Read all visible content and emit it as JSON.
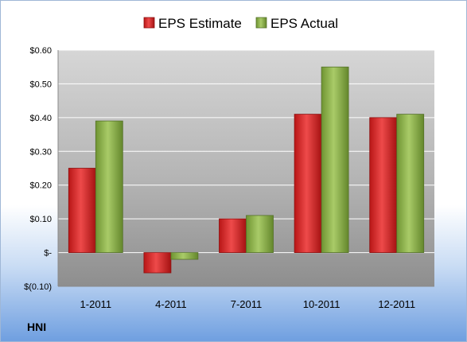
{
  "chart_data": {
    "type": "bar",
    "categories": [
      "1-2011",
      "4-2011",
      "7-2011",
      "10-2011",
      "12-2011"
    ],
    "series": [
      {
        "name": "EPS Estimate",
        "color": "#d42a2a",
        "values": [
          0.25,
          -0.06,
          0.1,
          0.41,
          0.4
        ]
      },
      {
        "name": "EPS Actual",
        "color": "#8bb04a",
        "values": [
          0.39,
          -0.02,
          0.11,
          0.55,
          0.41
        ]
      }
    ],
    "ylim": [
      -0.1,
      0.6
    ],
    "yticks": [
      {
        "value": 0.6,
        "label": "$0.60"
      },
      {
        "value": 0.5,
        "label": "$0.50"
      },
      {
        "value": 0.4,
        "label": "$0.40"
      },
      {
        "value": 0.3,
        "label": "$0.30"
      },
      {
        "value": 0.2,
        "label": "$0.20"
      },
      {
        "value": 0.1,
        "label": "$0.10"
      },
      {
        "value": 0.0,
        "label": "$-"
      },
      {
        "value": -0.1,
        "label": "$(0.10)"
      }
    ],
    "grid": true,
    "legend_position": "top"
  },
  "ticker": "HNI"
}
